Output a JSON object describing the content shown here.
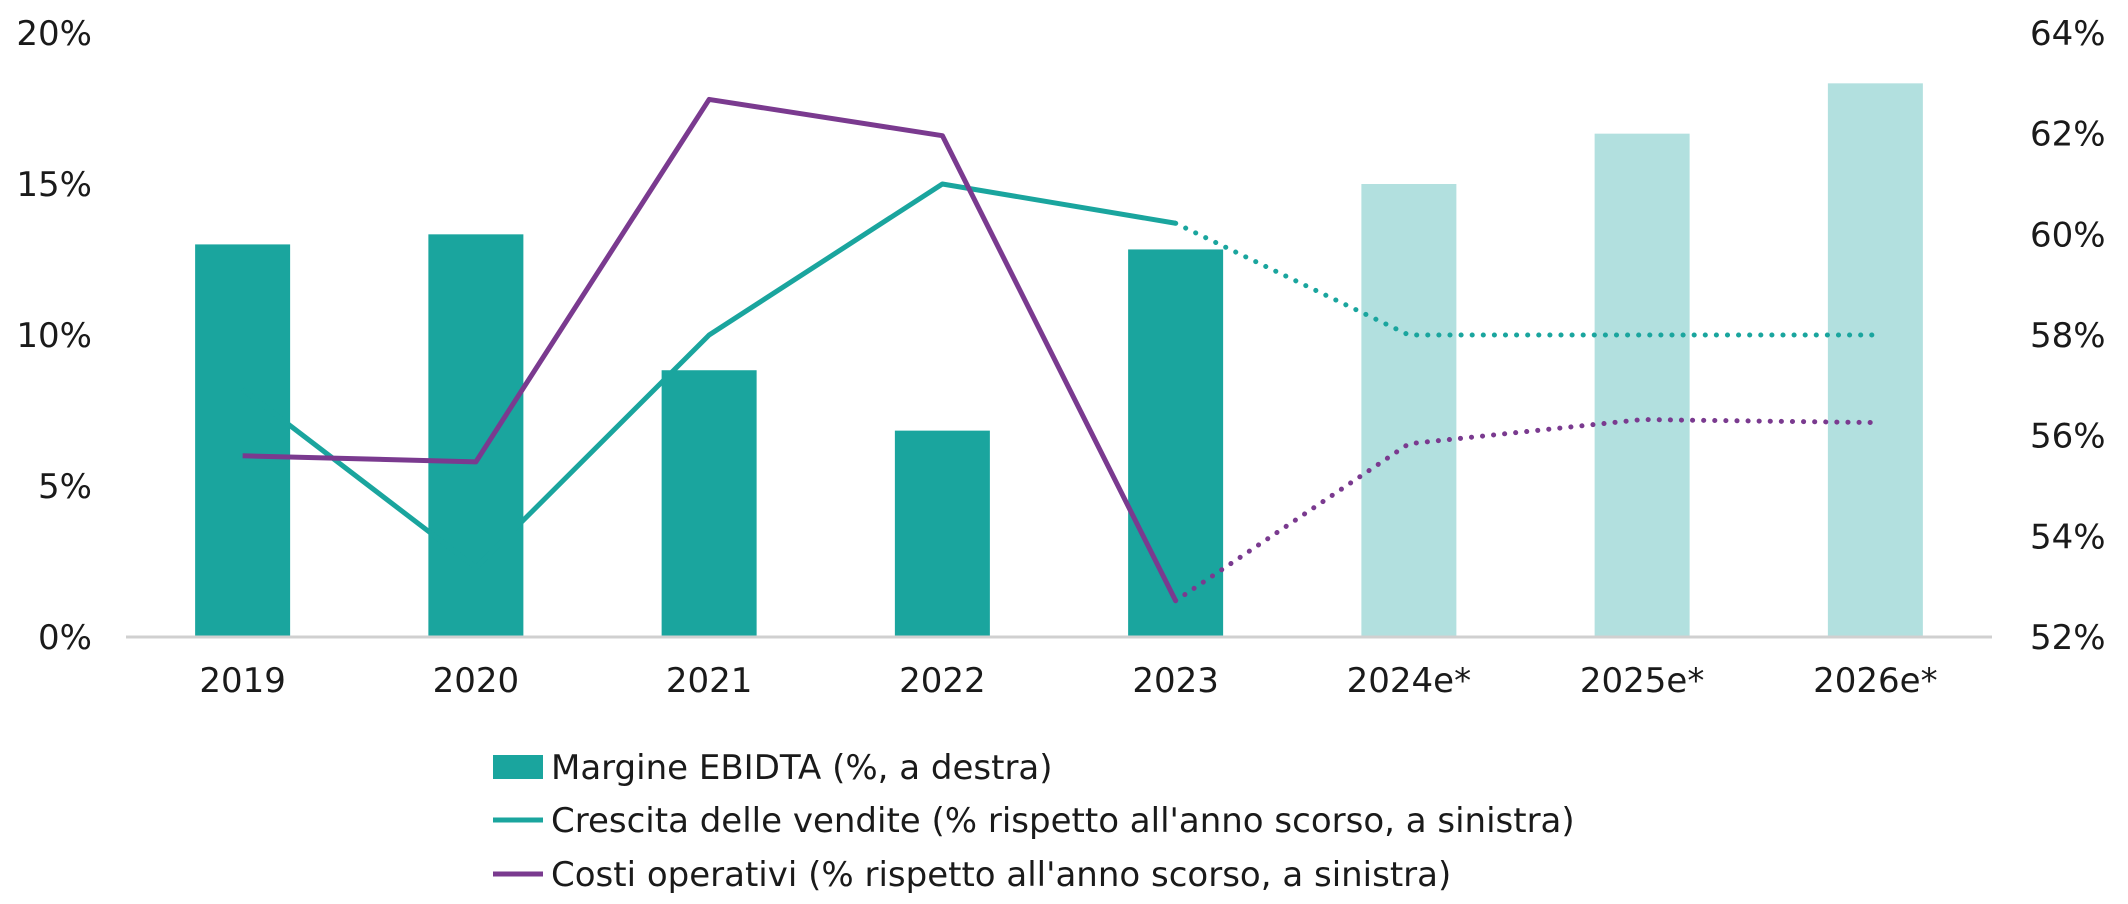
{
  "chart_data": {
    "type": "bar",
    "categories": [
      "2019",
      "2020",
      "2021",
      "2022",
      "2023",
      "2024e*",
      "2025e*",
      "2026e*"
    ],
    "bars": {
      "name": "Margine EBIDTA (%, a destra)",
      "axis": "right",
      "values": [
        59.8,
        60.0,
        57.3,
        56.1,
        59.7,
        61.0,
        62.0,
        63.0
      ],
      "estimated": [
        false,
        false,
        false,
        false,
        false,
        true,
        true,
        true
      ]
    },
    "lines": [
      {
        "name": "Crescita delle vendite (% rispetto all'anno scorso, a sinistra)",
        "axis": "left",
        "values": [
          8.2,
          2.3,
          10.0,
          15.0,
          13.7,
          10.0,
          10.0,
          10.0
        ],
        "dotted_from_index": 4
      },
      {
        "name": "Costi operativi (% rispetto all'anno scorso, a sinistra)",
        "axis": "left",
        "values": [
          6.0,
          5.8,
          17.8,
          16.6,
          1.2,
          6.4,
          7.2,
          7.1
        ],
        "dotted_from_index": 4
      }
    ],
    "y_left": {
      "min": 0,
      "max": 20,
      "ticks": [
        "0%",
        "5%",
        "10%",
        "15%",
        "20%"
      ]
    },
    "y_right": {
      "min": 52,
      "max": 64,
      "ticks": [
        "52%",
        "54%",
        "56%",
        "58%",
        "60%",
        "62%",
        "64%"
      ]
    },
    "grid": false,
    "legend_position": "bottom-center",
    "colors": {
      "bar_actual": "#1aa59e",
      "bar_estimate": "#b2e0df",
      "sales_line": "#1aa59e",
      "costs_line": "#7a3a8f",
      "axis": "#d0d0d0"
    }
  }
}
